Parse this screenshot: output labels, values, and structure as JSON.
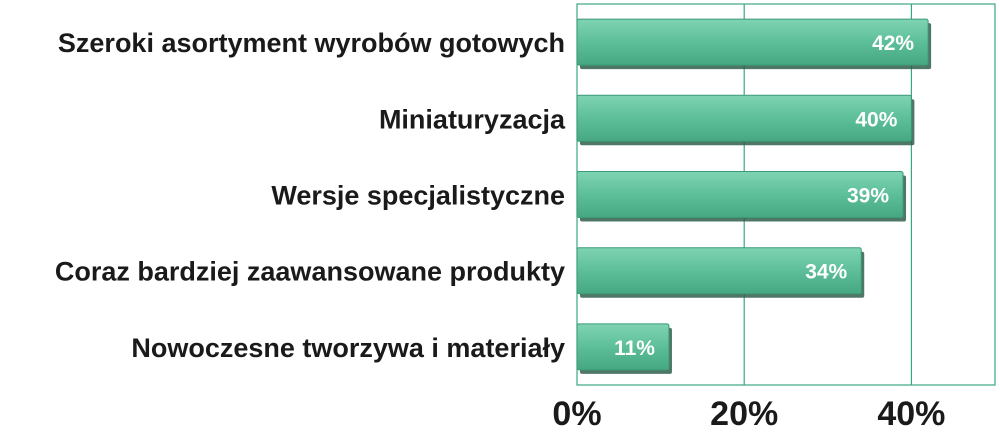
{
  "chart_data": {
    "type": "bar",
    "orientation": "horizontal",
    "categories": [
      "Szeroki asortyment wyrobów gotowych",
      "Miniaturyzacja",
      "Wersje specjalistyczne",
      "Coraz bardziej zaawansowane produkty",
      "Nowoczesne tworzywa i materiały"
    ],
    "values": [
      42,
      40,
      39,
      34,
      11
    ],
    "data_labels": [
      "42%",
      "40%",
      "39%",
      "34%",
      "11%"
    ],
    "x_ticks": [
      0,
      20,
      40
    ],
    "x_tick_labels": [
      "0%",
      "20%",
      "40%"
    ],
    "xlim": [
      0,
      50
    ],
    "grid": true,
    "legend": "none",
    "bar_color": "#5dbf9a",
    "grid_color": "#3aa77e"
  }
}
